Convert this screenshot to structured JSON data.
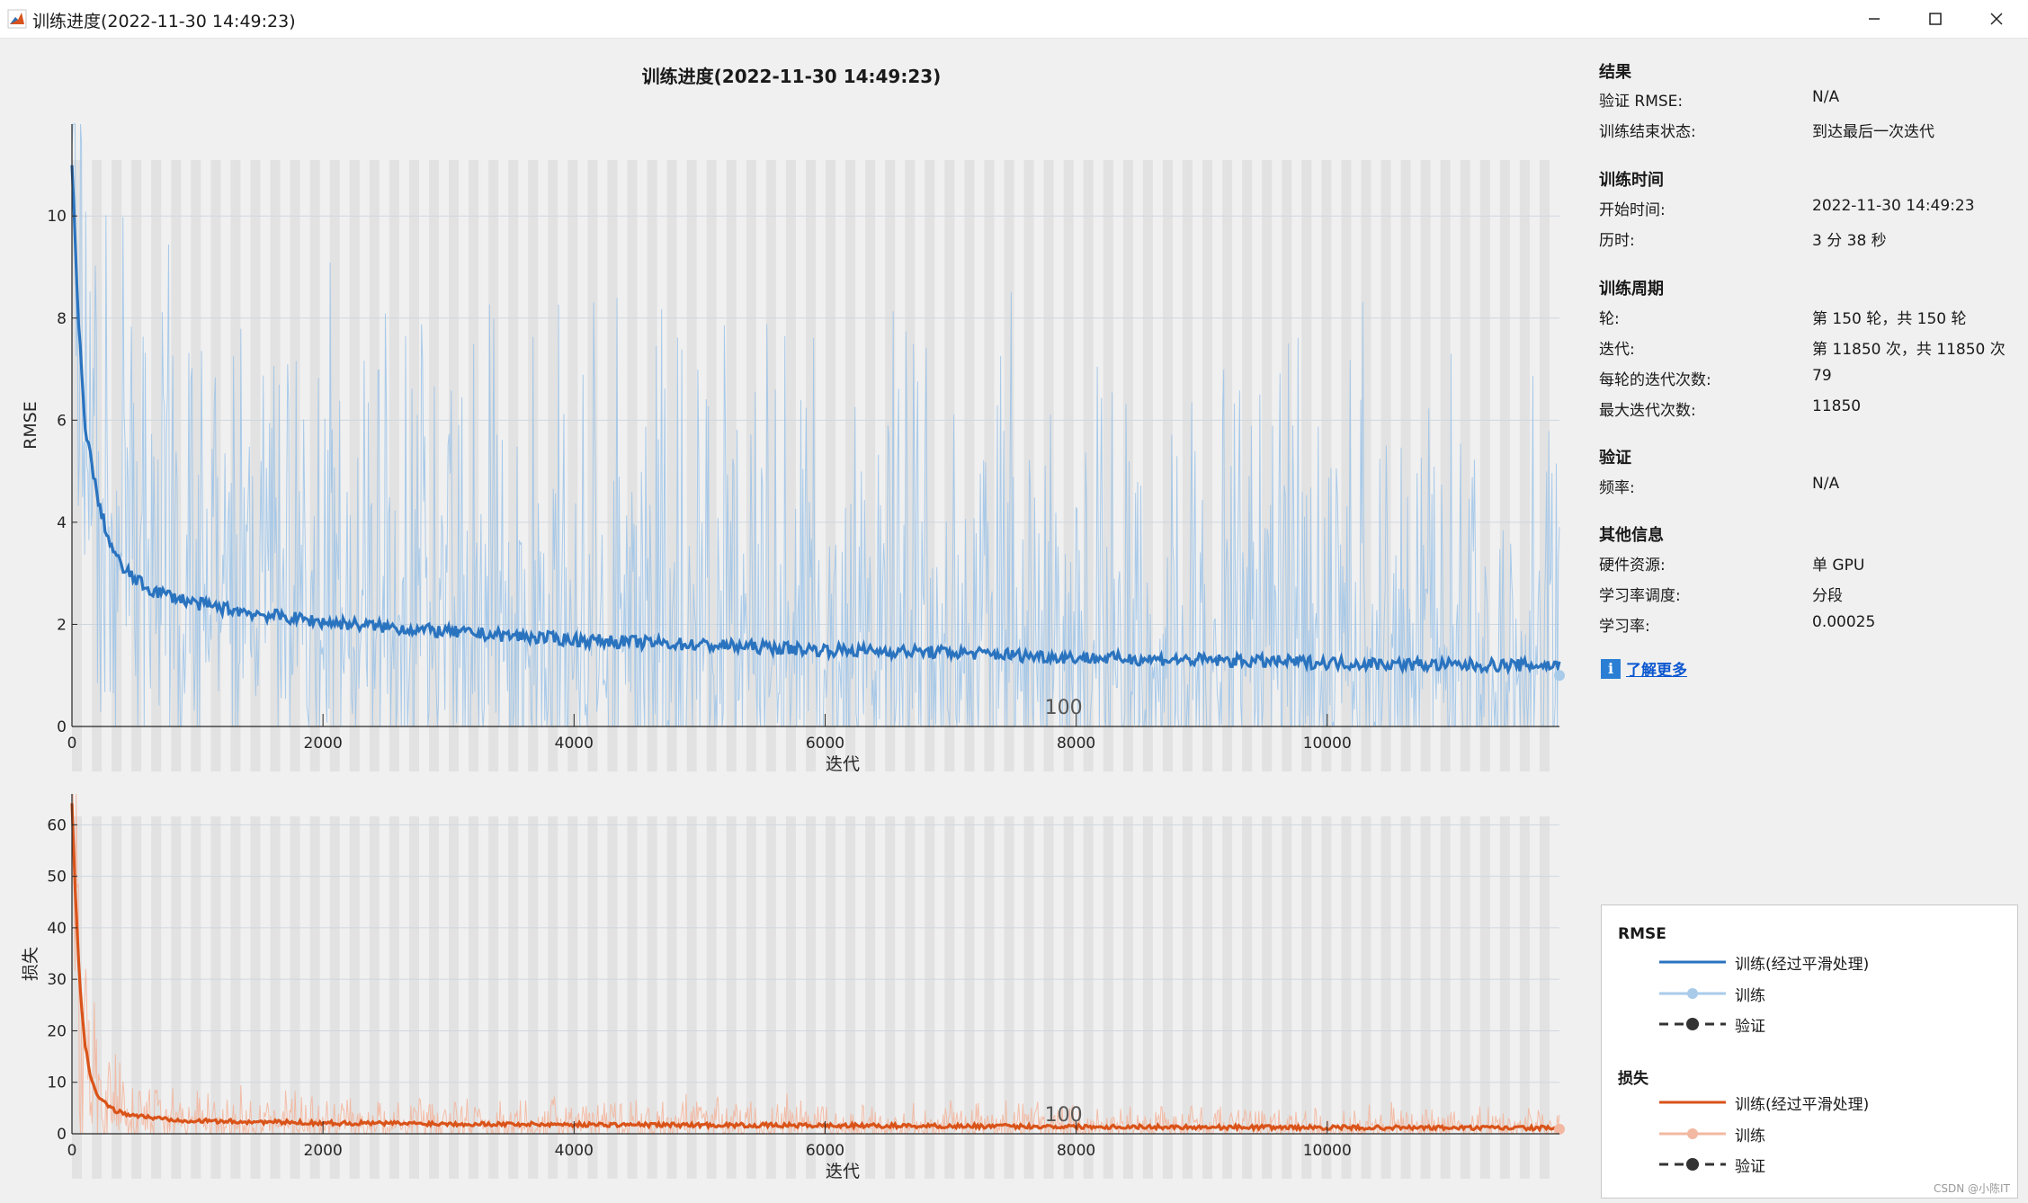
{
  "window": {
    "title": "训练进度(2022-11-30 14:49:23)",
    "controls": [
      "minimize-icon",
      "maximize-icon",
      "close-icon"
    ]
  },
  "figure": {
    "title": "训练进度(2022-11-30 14:49:23)"
  },
  "chart_data": [
    {
      "type": "line",
      "ylabel": "RMSE",
      "xlabel": "迭代",
      "xlim": [
        0,
        11850
      ],
      "ylim": [
        0,
        11.8
      ],
      "xticks": [
        0,
        2000,
        4000,
        6000,
        8000,
        10000
      ],
      "yticks": [
        0,
        2,
        4,
        6,
        8,
        10
      ],
      "epoch_marker_label": "100",
      "epoch_marker_at": 7900,
      "epochs": 150,
      "iterations_per_epoch": 79,
      "grid": true,
      "series": [
        {
          "name": "训练(经过平滑处理)",
          "color": "#2a73bf",
          "x": [
            0,
            50,
            100,
            200,
            300,
            400,
            600,
            800,
            1000,
            1500,
            2000,
            3000,
            4000,
            5000,
            6000,
            7000,
            8000,
            9000,
            10000,
            11000,
            11850
          ],
          "y": [
            11.0,
            8.0,
            6.0,
            4.5,
            3.6,
            3.1,
            2.7,
            2.55,
            2.4,
            2.2,
            2.05,
            1.85,
            1.7,
            1.6,
            1.5,
            1.45,
            1.35,
            1.3,
            1.25,
            1.2,
            1.2
          ]
        },
        {
          "name": "训练",
          "color": "#a9cbea",
          "x": [
            0,
            100,
            200,
            400,
            1000,
            2000,
            4000,
            6000,
            8000,
            10000,
            11850
          ],
          "y": [
            11.5,
            7.5,
            5.0,
            3.5,
            2.5,
            2.0,
            1.7,
            1.5,
            1.35,
            1.25,
            1.0
          ]
        }
      ]
    },
    {
      "type": "line",
      "ylabel": "损失",
      "xlabel": "迭代",
      "xlim": [
        0,
        11850
      ],
      "ylim": [
        0,
        66
      ],
      "xticks": [
        0,
        2000,
        4000,
        6000,
        8000,
        10000
      ],
      "yticks": [
        0,
        10,
        20,
        30,
        40,
        50,
        60
      ],
      "epoch_marker_label": "100",
      "epoch_marker_at": 7900,
      "epochs": 150,
      "iterations_per_epoch": 79,
      "grid": true,
      "series": [
        {
          "name": "训练(经过平滑处理)",
          "color": "#d95319",
          "x": [
            0,
            30,
            60,
            100,
            150,
            200,
            300,
            400,
            600,
            800,
            1000,
            2000,
            4000,
            6000,
            8000,
            10000,
            11850
          ],
          "y": [
            64,
            45,
            30,
            18,
            11,
            7.5,
            5,
            4,
            3.2,
            2.8,
            2.5,
            2.1,
            1.8,
            1.6,
            1.4,
            1.2,
            1.1
          ]
        },
        {
          "name": "训练",
          "color": "#f2b8a2",
          "x": [
            0,
            100,
            200,
            400,
            1000,
            2000,
            4000,
            6000,
            8000,
            10000,
            11850
          ],
          "y": [
            65,
            20,
            8,
            4.5,
            2.8,
            2.2,
            1.9,
            1.7,
            1.5,
            1.3,
            0.9
          ]
        }
      ]
    }
  ],
  "info": {
    "sections": [
      {
        "title": "结果",
        "rows": [
          {
            "label": "验证 RMSE:",
            "value": "N/A"
          },
          {
            "label": "训练结束状态:",
            "value": "到达最后一次迭代"
          }
        ]
      },
      {
        "title": "训练时间",
        "rows": [
          {
            "label": "开始时间:",
            "value": "2022-11-30 14:49:23"
          },
          {
            "label": "历时:",
            "value": "3 分 38 秒"
          }
        ]
      },
      {
        "title": "训练周期",
        "rows": [
          {
            "label": "轮:",
            "value": "第 150 轮，共 150 轮"
          },
          {
            "label": "迭代:",
            "value": "第 11850 次，共 11850 次"
          },
          {
            "label": "每轮的迭代次数:",
            "value": "79"
          },
          {
            "label": "最大迭代次数:",
            "value": "11850"
          }
        ]
      },
      {
        "title": "验证",
        "rows": [
          {
            "label": "频率:",
            "value": "N/A"
          }
        ]
      },
      {
        "title": "其他信息",
        "rows": [
          {
            "label": "硬件资源:",
            "value": "单 GPU"
          },
          {
            "label": "学习率调度:",
            "value": "分段"
          },
          {
            "label": "学习率:",
            "value": "0.00025"
          }
        ]
      }
    ],
    "learn_more": "了解更多",
    "learn_more_icon": "info-icon"
  },
  "legend": {
    "rmse_title": "RMSE",
    "rmse_items": [
      {
        "label": "训练(经过平滑处理)",
        "color": "#2a73bf",
        "style": "solid"
      },
      {
        "label": "训练",
        "color": "#a9cbea",
        "style": "solid-marker"
      },
      {
        "label": "验证",
        "color": "#333333",
        "style": "dashed-marker"
      }
    ],
    "loss_title": "损失",
    "loss_items": [
      {
        "label": "训练(经过平滑处理)",
        "color": "#d95319",
        "style": "solid"
      },
      {
        "label": "训练",
        "color": "#f2b8a2",
        "style": "solid-marker"
      },
      {
        "label": "验证",
        "color": "#333333",
        "style": "dashed-marker"
      }
    ]
  },
  "watermark": "CSDN @小陈IT"
}
